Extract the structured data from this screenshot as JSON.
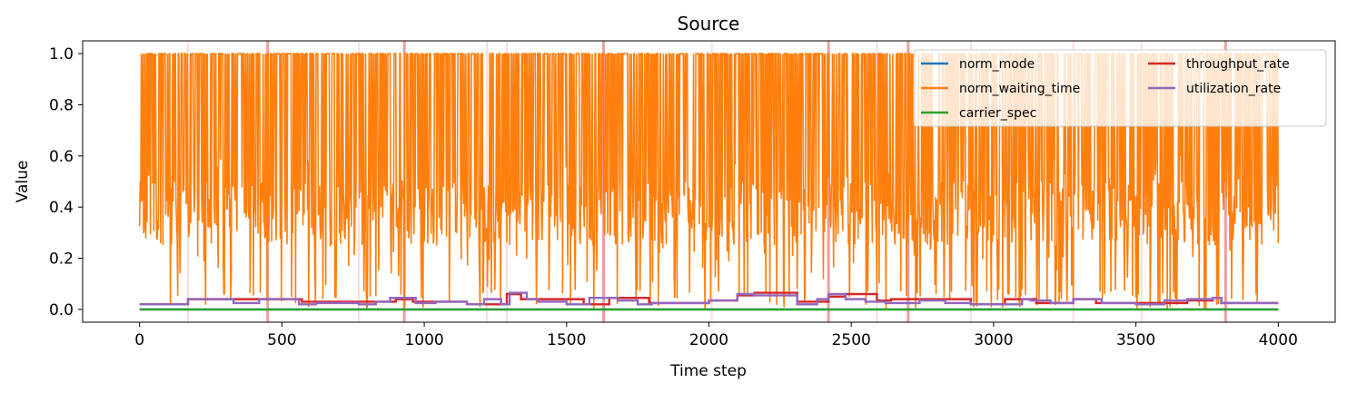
{
  "chart_data": {
    "type": "line",
    "title": "Source",
    "xlabel": "Time step",
    "ylabel": "Value",
    "xlim": [
      -200,
      4200
    ],
    "ylim": [
      -0.05,
      1.05
    ],
    "x_ticks": [
      0,
      500,
      1000,
      1500,
      2000,
      2500,
      3000,
      3500,
      4000
    ],
    "x_tick_labels": [
      "0",
      "500",
      "1000",
      "1500",
      "2000",
      "2500",
      "3000",
      "3500",
      "4000"
    ],
    "y_ticks": [
      0.0,
      0.2,
      0.4,
      0.6,
      0.8,
      1.0
    ],
    "y_tick_labels": [
      "0.0",
      "0.2",
      "0.4",
      "0.6",
      "0.8",
      "1.0"
    ],
    "grid": false,
    "legend_position": "top-right",
    "legend_columns": 2,
    "background_event_markers": {
      "color": "#d62728",
      "strong_x": [
        450,
        930,
        1630,
        2420,
        2700,
        3815
      ],
      "faint_x": [
        170,
        770,
        1220,
        1290,
        2010,
        2590,
        2920,
        3280,
        3520
      ]
    },
    "series": [
      {
        "name": "norm_mode",
        "color": "#1f77b4",
        "style": "constant",
        "x": [
          0,
          4000
        ],
        "y": [
          0.0,
          0.0
        ]
      },
      {
        "name": "norm_waiting_time",
        "color": "#ff7f0e",
        "style": "noisy",
        "x_range": [
          0,
          4000
        ],
        "upper_bound": 1.0,
        "lower_bound": 0.0,
        "typical_low": 0.25,
        "note_visual": "dense high-frequency oscillation between about 0.2 and 1.0 with dips toward 0.0"
      },
      {
        "name": "carrier_spec",
        "color": "#2ca02c",
        "style": "constant",
        "x": [
          0,
          4000
        ],
        "y": [
          0.0,
          0.0
        ]
      },
      {
        "name": "throughput_rate",
        "color": "#d62728",
        "style": "step",
        "x": [
          0,
          170,
          180,
          440,
          570,
          770,
          900,
          960,
          1150,
          1290,
          1340,
          1560,
          1650,
          1790,
          2000,
          2100,
          2160,
          2310,
          2420,
          2480,
          2590,
          2640,
          2740,
          2920,
          3040,
          3150,
          3280,
          3360,
          3680,
          3770,
          3800,
          4000
        ],
        "y": [
          0.02,
          0.04,
          0.04,
          0.04,
          0.03,
          0.03,
          0.04,
          0.03,
          0.02,
          0.06,
          0.04,
          0.02,
          0.045,
          0.025,
          0.035,
          0.055,
          0.065,
          0.03,
          0.05,
          0.06,
          0.035,
          0.04,
          0.04,
          0.02,
          0.04,
          0.025,
          0.04,
          0.025,
          0.035,
          0.045,
          0.025,
          0.025
        ]
      },
      {
        "name": "utilization_rate",
        "color": "#9467bd",
        "style": "step",
        "x": [
          0,
          170,
          180,
          330,
          420,
          560,
          620,
          770,
          830,
          880,
          970,
          1040,
          1150,
          1210,
          1270,
          1300,
          1360,
          1400,
          1500,
          1580,
          1680,
          1750,
          1800,
          2000,
          2100,
          2160,
          2310,
          2380,
          2420,
          2480,
          2550,
          2620,
          2740,
          2830,
          2920,
          3000,
          3100,
          3130,
          3200,
          3280,
          3380,
          3500,
          3600,
          3680,
          3770,
          3800,
          4000
        ],
        "y": [
          0.02,
          0.04,
          0.04,
          0.025,
          0.04,
          0.02,
          0.025,
          0.02,
          0.03,
          0.045,
          0.025,
          0.03,
          0.02,
          0.04,
          0.02,
          0.065,
          0.04,
          0.03,
          0.02,
          0.045,
          0.035,
          0.02,
          0.025,
          0.035,
          0.06,
          0.055,
          0.02,
          0.04,
          0.06,
          0.04,
          0.03,
          0.025,
          0.035,
          0.025,
          0.02,
          0.02,
          0.04,
          0.035,
          0.025,
          0.04,
          0.025,
          0.02,
          0.035,
          0.04,
          0.045,
          0.025,
          0.025
        ]
      }
    ]
  }
}
